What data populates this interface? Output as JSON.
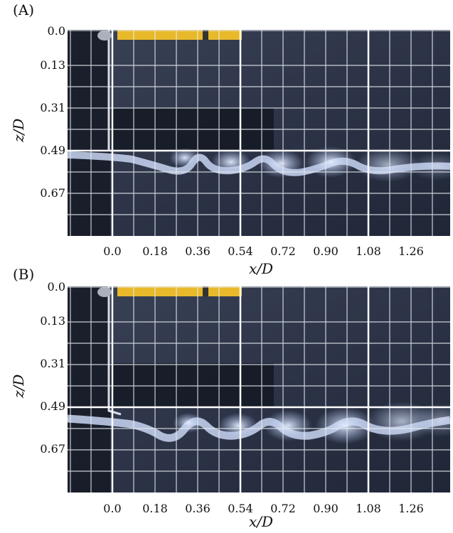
{
  "panels": [
    {
      "label": "(A)",
      "yticks": [
        "0.0",
        "0.13",
        "0.31",
        "0.49",
        "0.67"
      ],
      "xticks": [
        "0.0",
        "0.18",
        "0.36",
        "0.54",
        "0.72",
        "0.90",
        "1.08",
        "1.26"
      ],
      "xlabel": "x/D",
      "ylabel": "z/D"
    },
    {
      "label": "(B)",
      "yticks": [
        "0.0",
        "0.13",
        "0.31",
        "0.49",
        "0.67"
      ],
      "xticks": [
        "0.0",
        "0.18",
        "0.36",
        "0.54",
        "0.72",
        "0.90",
        "1.08",
        "1.26"
      ],
      "xlabel": "x/D",
      "ylabel": "z/D"
    }
  ],
  "colors": {
    "water": "#2b3347",
    "dye": "#c9d6f2",
    "grid": "#e8ecf2",
    "rod": "#e8b92a"
  }
}
